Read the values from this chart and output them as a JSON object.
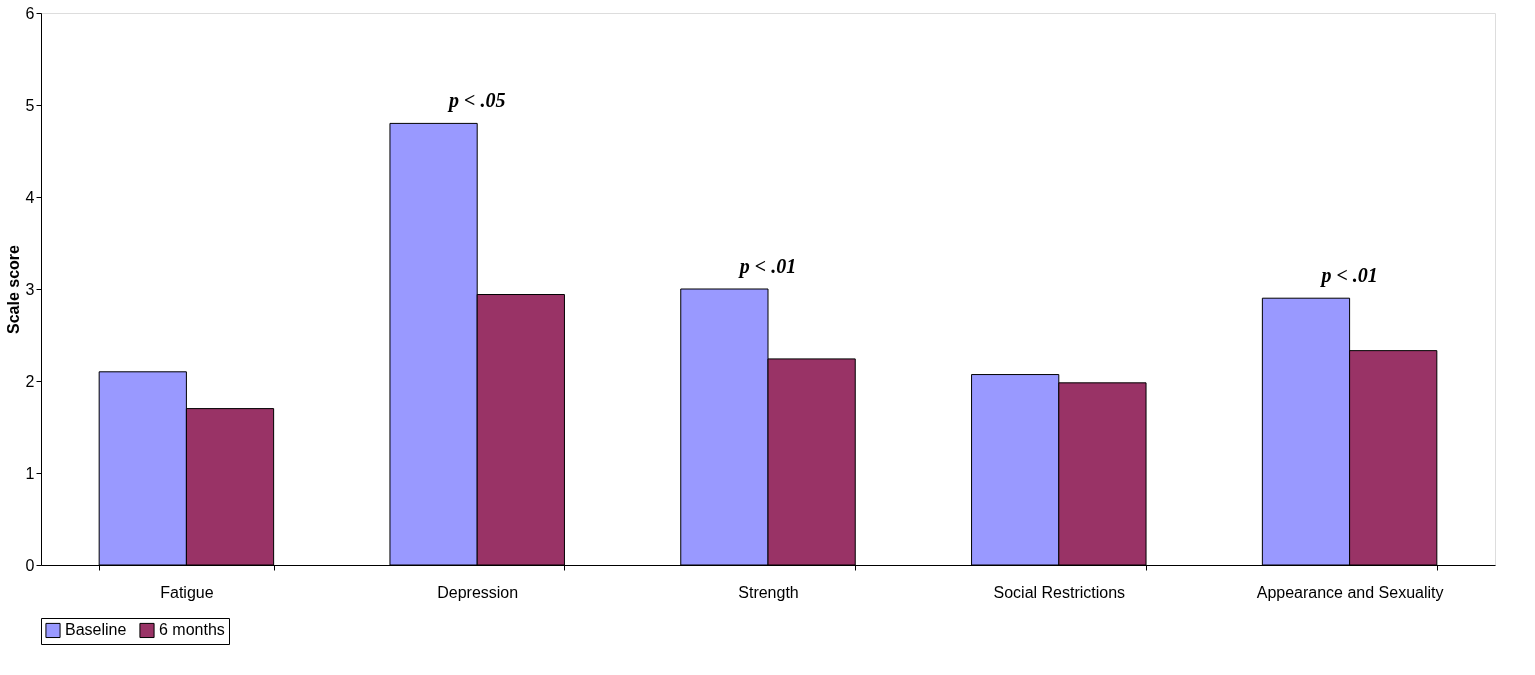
{
  "chart_data": {
    "type": "bar",
    "categories": [
      "Fatigue",
      "Depression",
      "Strength",
      "Social Restrictions",
      "Appearance and Sexuality"
    ],
    "series": [
      {
        "name": "Baseline",
        "color": "#9999ff",
        "values": [
          2.1,
          4.8,
          3.0,
          2.07,
          2.9
        ]
      },
      {
        "name": "6 months",
        "color": "#993366",
        "values": [
          1.7,
          2.94,
          2.24,
          1.98,
          2.33
        ]
      }
    ],
    "ylabel": "Scale score",
    "ylim": [
      0,
      6
    ],
    "yticks": [
      0,
      1,
      2,
      3,
      4,
      5,
      6
    ],
    "grid": false,
    "legend": "bottom",
    "annotations": [
      {
        "text": "p < .05",
        "x": "Depression",
        "y": 4.8
      },
      {
        "text": "p < .01",
        "x": "Strength",
        "y": 3.0
      },
      {
        "text": "p < .01",
        "x": "Appearance and Sexuality",
        "y": 2.9
      }
    ]
  }
}
